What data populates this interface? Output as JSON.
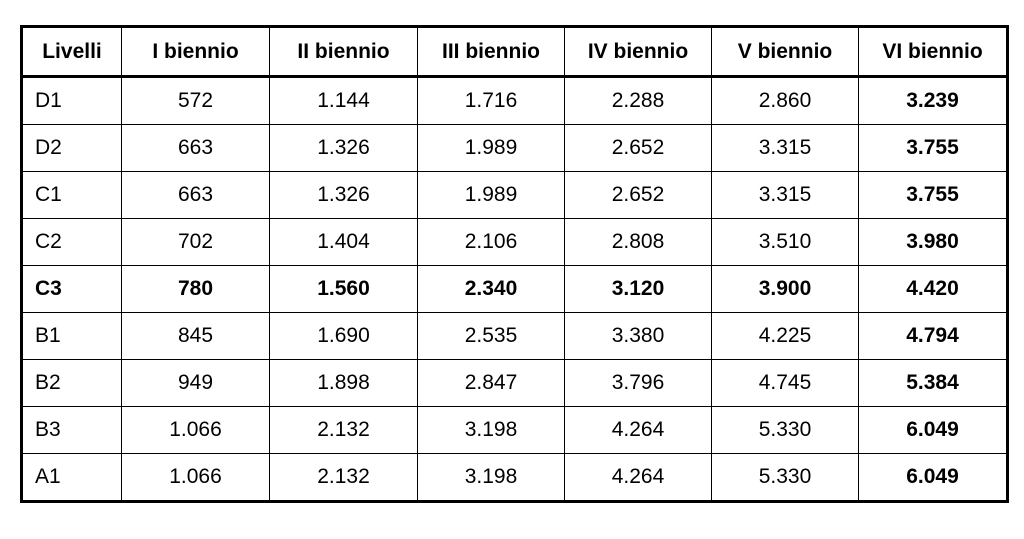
{
  "table": {
    "header": [
      "Livelli",
      "I biennio",
      "II biennio",
      "III biennio",
      "IV biennio",
      "V biennio",
      "VI biennio"
    ],
    "rows": [
      [
        "D1",
        "572",
        "1.144",
        "1.716",
        "2.288",
        "2.860",
        "3.239"
      ],
      [
        "D2",
        "663",
        "1.326",
        "1.989",
        "2.652",
        "3.315",
        "3.755"
      ],
      [
        "C1",
        "663",
        "1.326",
        "1.989",
        "2.652",
        "3.315",
        "3.755"
      ],
      [
        "C2",
        "702",
        "1.404",
        "2.106",
        "2.808",
        "3.510",
        "3.980"
      ],
      [
        "C3",
        "780",
        "1.560",
        "2.340",
        "3.120",
        "3.900",
        "4.420"
      ],
      [
        "B1",
        "845",
        "1.690",
        "2.535",
        "3.380",
        "4.225",
        "4.794"
      ],
      [
        "B2",
        "949",
        "1.898",
        "2.847",
        "3.796",
        "4.745",
        "5.384"
      ],
      [
        "B3",
        "1.066",
        "2.132",
        "3.198",
        "4.264",
        "5.330",
        "6.049"
      ],
      [
        "A1",
        "1.066",
        "2.132",
        "3.198",
        "4.264",
        "5.330",
        "6.049"
      ]
    ]
  }
}
